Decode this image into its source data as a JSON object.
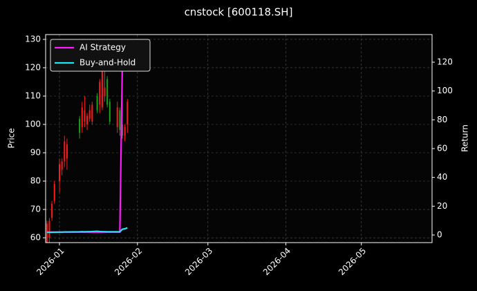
{
  "chart_data": {
    "type": "candlestick",
    "title": "cnstock [600118.SH]",
    "ylabel": "Price",
    "y2label": "Return",
    "x": [
      -5,
      -4,
      -3,
      -2,
      0,
      1,
      2,
      3,
      8,
      9,
      10,
      11,
      12,
      13,
      15,
      16,
      17,
      18,
      19,
      20,
      23,
      24,
      25,
      26,
      27
    ],
    "open": [
      58,
      60,
      67,
      73,
      80,
      84,
      87,
      88,
      102,
      99,
      101,
      100,
      102,
      101,
      110,
      107,
      106,
      110,
      116,
      108,
      99,
      105,
      100,
      96,
      100
    ],
    "high": [
      66,
      67,
      73,
      80,
      88,
      88,
      96,
      95,
      103,
      108,
      110,
      104,
      107,
      108,
      111,
      116,
      120,
      121,
      117,
      109,
      108,
      106,
      120,
      100,
      109
    ],
    "low": [
      58,
      58,
      66,
      72,
      76,
      82,
      85,
      84,
      95,
      97,
      99,
      98,
      101,
      100,
      104,
      104,
      105,
      108,
      106,
      100,
      97,
      96,
      95,
      94,
      97
    ],
    "close": [
      65,
      66,
      72,
      79,
      86,
      87,
      94,
      93,
      97,
      106,
      105,
      103,
      105,
      107,
      105,
      115,
      119,
      113,
      107,
      101,
      106,
      98,
      96,
      99,
      108
    ],
    "up_color": "#ff1a1a",
    "down_color": "#1aa31a",
    "series": [
      {
        "name": "AI Strategy",
        "color": "#ff1aff",
        "axis": "y2",
        "values": [
          2,
          2,
          2,
          2,
          2,
          2,
          2,
          2,
          2,
          2,
          2,
          2,
          2,
          2,
          2,
          2,
          2,
          2,
          2,
          2,
          2,
          2,
          120,
          null,
          null
        ]
      },
      {
        "name": "Buy-and-Hold",
        "color": "#22e5f0",
        "axis": "y2",
        "values": [
          1.8,
          1.8,
          1.9,
          1.9,
          2.0,
          2.0,
          2.1,
          2.1,
          2.2,
          2.3,
          2.2,
          2.3,
          2.3,
          2.4,
          2.6,
          2.4,
          2.3,
          2.3,
          2.2,
          2.2,
          2.2,
          2.2,
          4.0,
          4.3,
          5.0
        ]
      }
    ],
    "xlim": [
      -5.5,
      148.1
    ],
    "xticks": [
      {
        "value": 0,
        "label": "2026-01"
      },
      {
        "value": 31,
        "label": "2026-02"
      },
      {
        "value": 59,
        "label": "2026-03"
      },
      {
        "value": 90,
        "label": "2026-04"
      },
      {
        "value": 120,
        "label": "2026-05"
      }
    ],
    "ylim": [
      58.3,
      131.7
    ],
    "yticks": [
      60,
      70,
      80,
      90,
      100,
      110,
      120,
      130
    ],
    "y2lim": [
      -5.3,
      139.2
    ],
    "y2ticks": [
      0,
      20,
      40,
      60,
      80,
      100,
      120
    ],
    "grid": true,
    "legend": "upper left"
  }
}
